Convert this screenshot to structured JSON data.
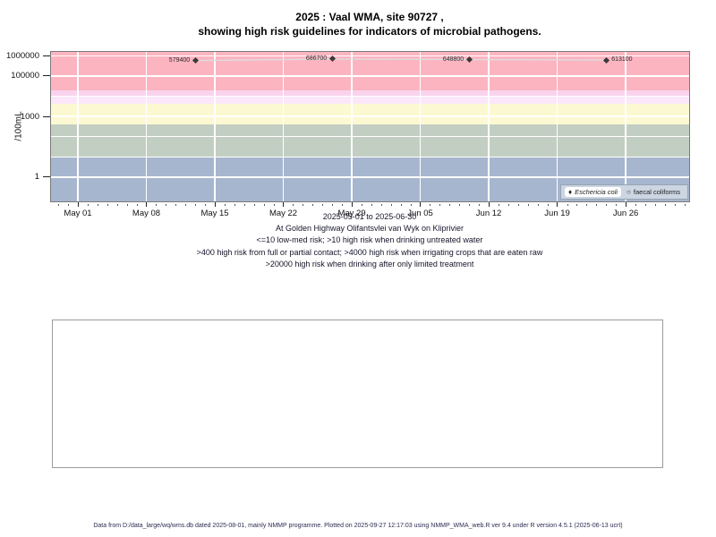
{
  "chart_data": {
    "type": "scatter",
    "title_line1": "2025 : Vaal WMA, site 90727 ,",
    "title_line2": "showing high risk guidelines for indicators of microbial pathogens.",
    "ylabel": "/100mL",
    "y_scale": "log10",
    "y_range_log10": [
      -1.2,
      6.19
    ],
    "y_axis_ticks": [
      {
        "label": "1000000",
        "value": 1000000
      },
      {
        "label": "100000",
        "value": 100000
      },
      {
        "label": "1000",
        "value": 1000
      },
      {
        "label": "1",
        "value": 1
      }
    ],
    "y_gridline_values": [
      1,
      10,
      100,
      1000,
      10000,
      100000,
      1000000
    ],
    "x_axis_ticks": [
      {
        "label": "May 01",
        "day": 0
      },
      {
        "label": "May 08",
        "day": 7
      },
      {
        "label": "May 15",
        "day": 14
      },
      {
        "label": "May 22",
        "day": 21
      },
      {
        "label": "May 29",
        "day": 28
      },
      {
        "label": "Jun 05",
        "day": 35
      },
      {
        "label": "Jun 12",
        "day": 42
      },
      {
        "label": "Jun 19",
        "day": 49
      },
      {
        "label": "Jun 26",
        "day": 56
      }
    ],
    "x_minor_tick_days": [
      -2,
      62
    ],
    "risk_bands": [
      {
        "from": 20000,
        "to": 1550000,
        "color": "#fcb4c1",
        "risk": ">20000 high risk when drinking after only limited treatment"
      },
      {
        "from": 10000,
        "to": 20000,
        "color": "#f9d3ee",
        "risk": ""
      },
      {
        "from": 4000,
        "to": 10000,
        "color": "#fbe7f9",
        "risk": ">4000 high risk when irrigating crops that are eaten raw"
      },
      {
        "from": 400,
        "to": 4000,
        "color": "#fcf9d2",
        "risk": ">400 high risk from full or partial contact"
      },
      {
        "from": 10,
        "to": 400,
        "color": "#c3cec2",
        "risk": ">10 high risk when drinking untreated water"
      },
      {
        "from": 0.063,
        "to": 10,
        "color": "#a7b6cf",
        "risk": "<=10 low-med risk"
      }
    ],
    "series": [
      {
        "name": "Eschericia coli",
        "marker": "filled-diamond",
        "marker_color": "#3a3a3a",
        "line_color": "#dcdcdc",
        "points": [
          {
            "day": 12,
            "value": 579400,
            "label": "579400",
            "label_side": "left"
          },
          {
            "day": 26,
            "value": 686700,
            "label": "686700",
            "label_side": "left"
          },
          {
            "day": 40,
            "value": 648800,
            "label": "648800",
            "label_side": "left"
          },
          {
            "day": 54,
            "value": 613100,
            "label": "613100",
            "label_side": "right"
          }
        ]
      },
      {
        "name": "faecal coliforms",
        "marker": "open-circle",
        "marker_color": "#444444",
        "line_color": "#dcdcdc",
        "points": []
      }
    ],
    "legend": {
      "entries": [
        {
          "marker": "filled-diamond",
          "label": "Eschericia coli",
          "italic": true,
          "highlighted": true
        },
        {
          "marker": "open-circle",
          "label": "faecal coliforms",
          "italic": false,
          "highlighted": false
        }
      ]
    },
    "captions": {
      "date_range": "2025-05-01 to 2025-06-30",
      "location": "At Golden Highway Olifantsvlei van Wyk on Kliprivier",
      "risk_line1": "<=10 low-med risk; >10 high risk when drinking untreated water",
      "risk_line2": ">400 high risk from full or partial contact; >4000 high risk when irrigating crops that are eaten raw",
      "risk_line3": ">20000 high risk when drinking after only limited treatment"
    }
  },
  "footer": "Data from D:/data_large/wq/wms.db dated 2025-08-01, mainly NMMP programme. Plotted on 2025-09-27 12:17:03 using NMMP_WMA_web.R ver 9.4 under R version 4.5.1 (2025-06-13 ucrt)"
}
